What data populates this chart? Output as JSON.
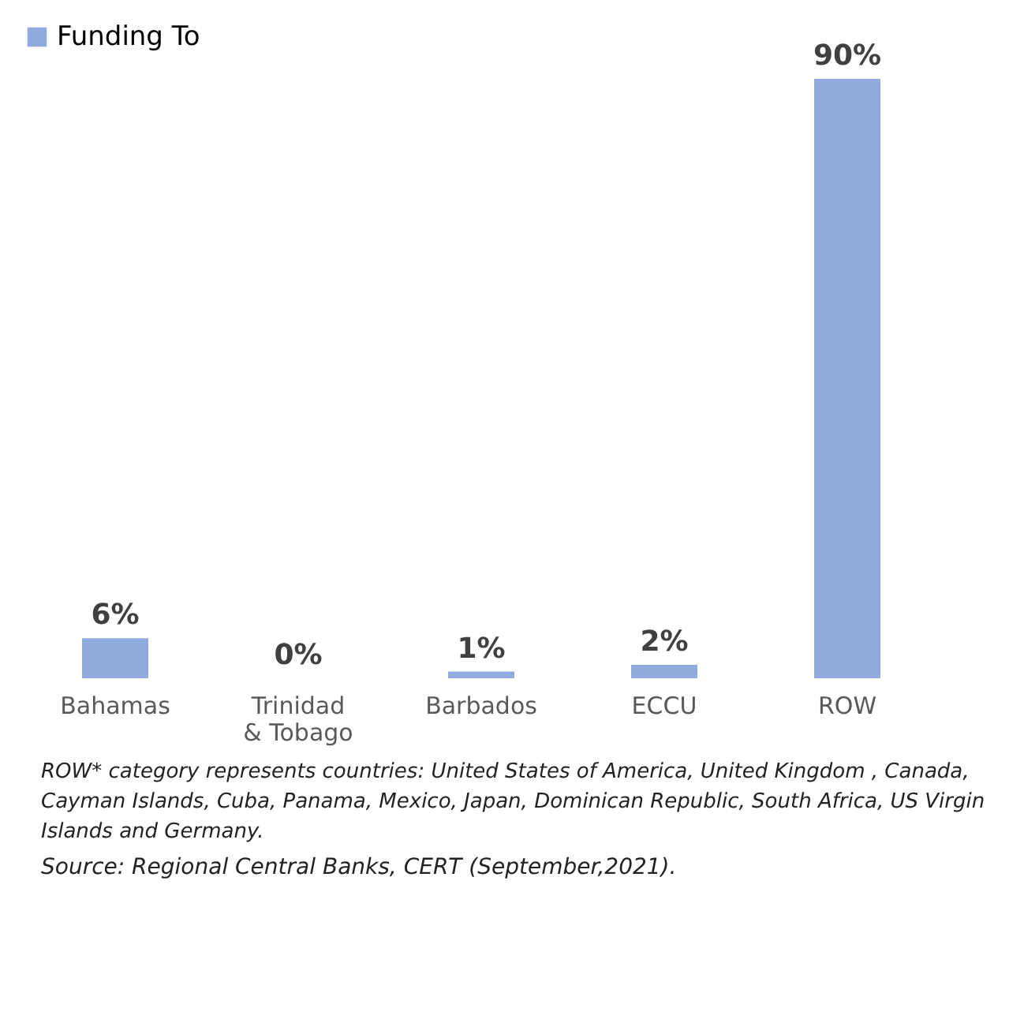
{
  "chart_data": {
    "type": "bar",
    "categories": [
      "Bahamas",
      "Trinidad & Tobago",
      "Barbados",
      "ECCU",
      "ROW"
    ],
    "series": [
      {
        "name": "Funding To",
        "color": "#8faadc",
        "values": [
          6,
          0,
          1,
          2,
          90
        ],
        "value_labels": [
          "6%",
          "0%",
          "1%",
          "2%",
          "90%"
        ]
      }
    ],
    "legend": "top",
    "annotations": [
      "ROW* category represents countries: United States of America, United Kingdom , Canada, Cayman Islands, Cuba, Panama, Mexico, Japan, Dominican Republic, South Africa, US Virgin Islands and Germany.",
      "Source: Regional Central Banks, CERT (September,2021)."
    ]
  }
}
